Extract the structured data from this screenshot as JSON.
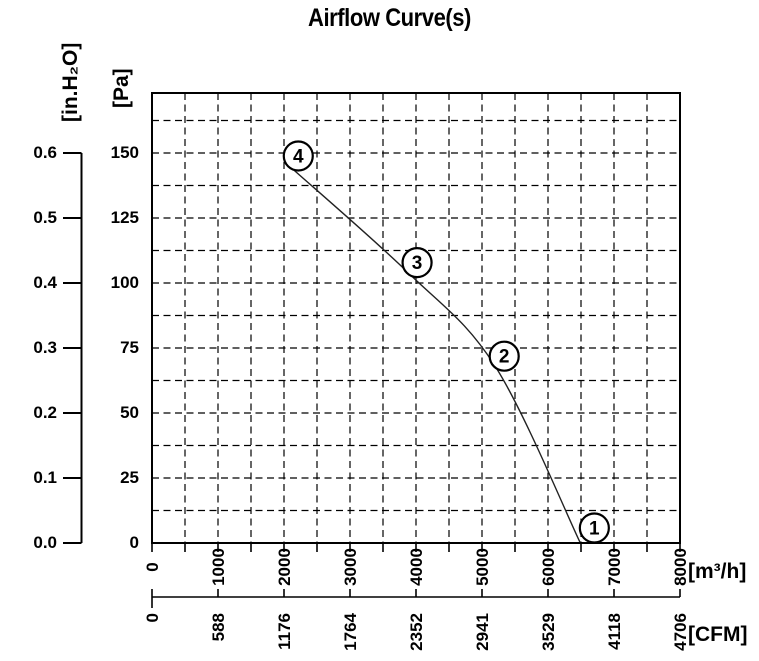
{
  "chart_data": {
    "type": "line",
    "title": "Airflow Curve(s)",
    "grid": {
      "style": "dashed",
      "minor_x_step_m3h": 500,
      "minor_y_step_pa": 12.5
    },
    "x_axis_primary": {
      "unit": "[m³/h]",
      "min": 0,
      "max": 8000,
      "tick_step": 1000,
      "tick_labels": [
        "0",
        "1000",
        "2000",
        "3000",
        "4000",
        "5000",
        "6000",
        "7000",
        "8000"
      ]
    },
    "x_axis_secondary": {
      "unit": "[CFM]",
      "min": 0,
      "max": 4706,
      "tick_labels": [
        "0",
        "588",
        "1176",
        "1764",
        "2352",
        "2941",
        "3529",
        "4118",
        "4706"
      ]
    },
    "y_axis_primary": {
      "unit": "[Pa]",
      "min": 0,
      "max": 150,
      "tick_step": 25,
      "tick_labels": [
        "0",
        "25",
        "50",
        "75",
        "100",
        "125",
        "150"
      ]
    },
    "y_axis_secondary": {
      "unit": "[in.H₂O]",
      "min": 0.0,
      "max": 0.6,
      "tick_step": 0.1,
      "tick_labels": [
        "0.0",
        "0.1",
        "0.2",
        "0.3",
        "0.4",
        "0.5",
        "0.6"
      ]
    },
    "series": [
      {
        "name": "airflow-curve",
        "points": [
          {
            "label": "4",
            "m3h": 2080,
            "pa": 145
          },
          {
            "label": "3",
            "m3h": 3880,
            "pa": 104
          },
          {
            "label": "2",
            "m3h": 5200,
            "pa": 68
          },
          {
            "label": "1",
            "m3h": 6490,
            "pa": 0
          }
        ]
      }
    ]
  }
}
